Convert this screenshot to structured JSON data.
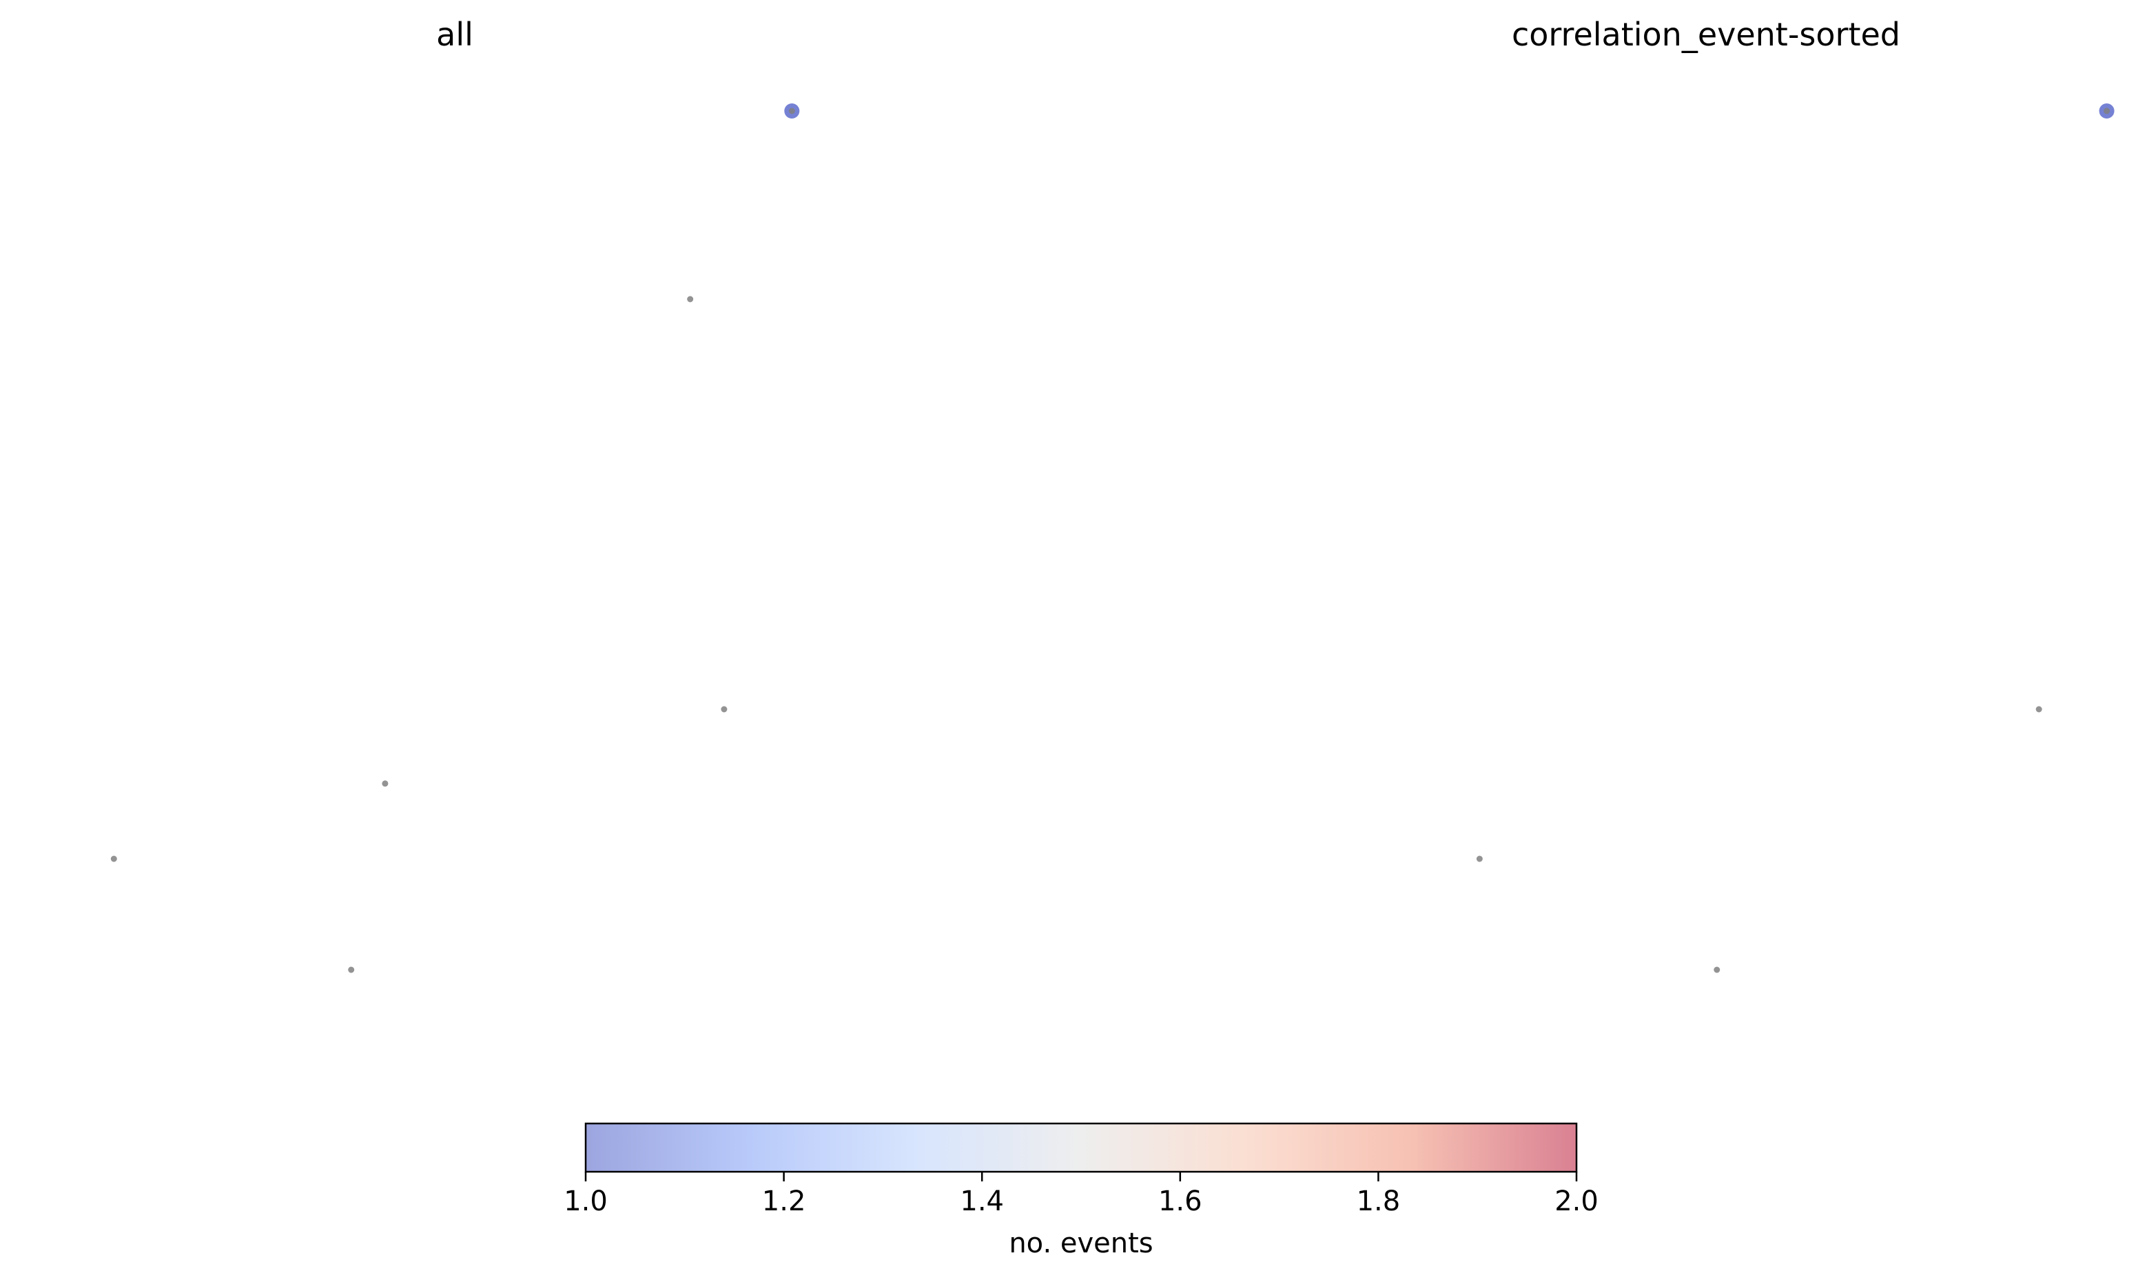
{
  "chart_data": [
    {
      "type": "scatter",
      "title": "all",
      "xlim": [
        0,
        1
      ],
      "ylim": [
        0,
        1
      ],
      "grid": false,
      "axes_visible": false,
      "points": [
        {
          "x": 0.91,
          "y": 0.985,
          "events": 1
        },
        {
          "x": 0.79,
          "y": 0.79,
          "events": null
        },
        {
          "x": 0.83,
          "y": 0.365,
          "events": null
        },
        {
          "x": 0.43,
          "y": 0.288,
          "events": null
        },
        {
          "x": 0.11,
          "y": 0.21,
          "events": null
        },
        {
          "x": 0.39,
          "y": 0.095,
          "events": null
        }
      ]
    },
    {
      "type": "scatter",
      "title": "correlation_event-sorted",
      "xlim": [
        0,
        1
      ],
      "ylim": [
        0,
        1
      ],
      "grid": false,
      "axes_visible": false,
      "points": [
        {
          "x": 0.985,
          "y": 0.985,
          "events": 1
        },
        {
          "x": 0.905,
          "y": 0.365,
          "events": null
        },
        {
          "x": 0.245,
          "y": 0.21,
          "events": null
        },
        {
          "x": 0.525,
          "y": 0.095,
          "events": null
        }
      ]
    }
  ],
  "colorbar": {
    "label": "no. events",
    "range": [
      1.0,
      2.0
    ],
    "ticks": [
      "1.0",
      "1.2",
      "1.4",
      "1.6",
      "1.8",
      "2.0"
    ],
    "colormap": "coolwarm",
    "gradient_colors": [
      "#3b4cc0",
      "#7396f5",
      "#b0cbfc",
      "#dddddd",
      "#f6bfa6",
      "#ee8468",
      "#b40426"
    ],
    "alpha": 0.5
  },
  "colors": {
    "point_unassigned": "#808080"
  }
}
